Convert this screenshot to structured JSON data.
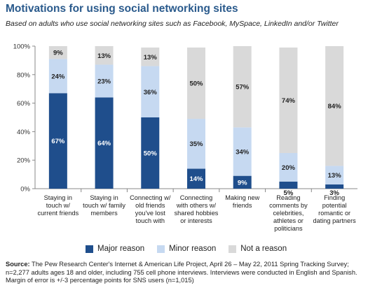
{
  "chart_data": {
    "type": "bar",
    "stacked": true,
    "title": "Motivations for using social networking sites",
    "subtitle": "Based on adults who use social networking sites such as Facebook, MySpace,  LinkedIn and/or Twitter",
    "categories": [
      "Staying in touch w/ current friends",
      "Staying in touch w/ family members",
      "Connecting w/ old friends you've lost touch with",
      "Connecting with others w/ shared hobbies or interests",
      "Making new friends",
      "Reading comments by celebrities, athletes or politicians",
      "Finding potential romantic or dating partners"
    ],
    "series": [
      {
        "name": "Major reason",
        "values": [
          67,
          64,
          50,
          14,
          9,
          5,
          3
        ],
        "labels": [
          "67%",
          "64%",
          "50%",
          "14%",
          "9%",
          "5%",
          "3%"
        ],
        "color": "#1f4e8c"
      },
      {
        "name": "Minor reason",
        "values": [
          24,
          23,
          36,
          35,
          34,
          20,
          13
        ],
        "labels": [
          "24%",
          "23%",
          "36%",
          "35%",
          "34%",
          "20%",
          "13%"
        ],
        "color": "#c6d9f1"
      },
      {
        "name": "Not a reason",
        "values": [
          9,
          13,
          13,
          50,
          57,
          74,
          84
        ],
        "labels": [
          "9%",
          "13%",
          "13%",
          "50%",
          "57%",
          "74%",
          "84%"
        ],
        "color": "#d9d9d9"
      }
    ],
    "ylim": [
      0,
      100
    ],
    "yticks": [
      "0%",
      "20%",
      "40%",
      "60%",
      "80%",
      "100%"
    ],
    "legend_position": "bottom"
  },
  "source": {
    "label": "Source:",
    "text": " The Pew Research Center's Internet & American Life Project, April 26 – May 22, 2011 Spring Tracking Survey; n=2,277 adults ages 18 and older, including 755 cell phone interviews. Interviews were conducted in English and Spanish. Margin of error is +/-3 percentage points for SNS users (n=1,015)"
  }
}
